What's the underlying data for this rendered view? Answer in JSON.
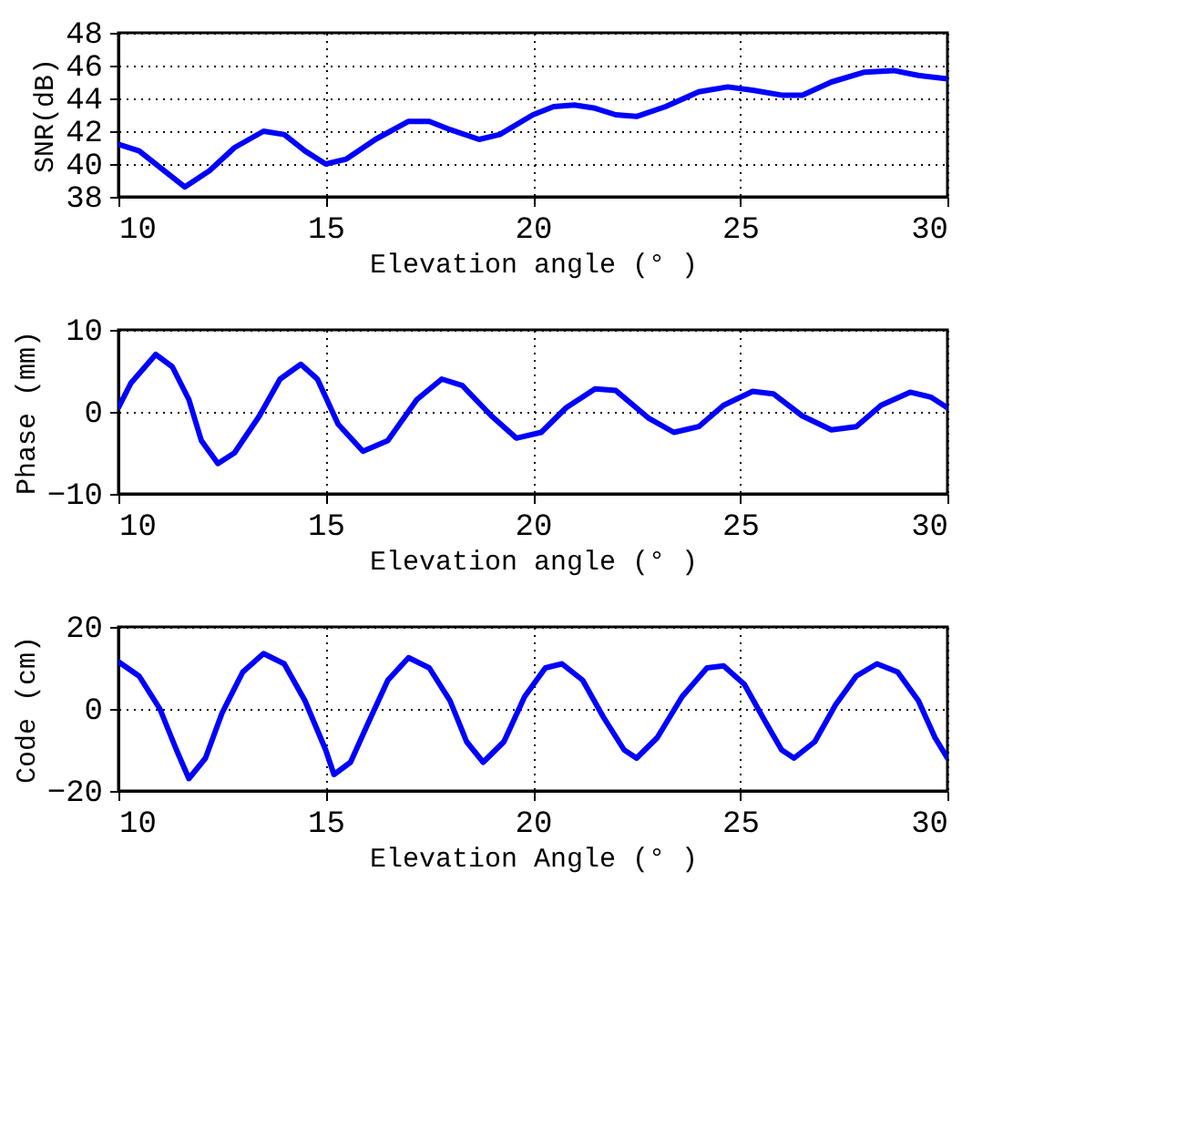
{
  "chart_data": [
    {
      "type": "line",
      "xlabel": "Elevation angle (° )",
      "ylabel": "SNR(dB)",
      "xlim": [
        10,
        30
      ],
      "xticks": [
        10,
        15,
        20,
        25,
        30
      ],
      "ylim": [
        38,
        48
      ],
      "yticks": [
        38,
        40,
        42,
        44,
        46,
        48
      ],
      "grid": true,
      "marker": "none",
      "line_style": "solid",
      "series": [
        {
          "color": "#0000ff",
          "x": [
            10,
            10.5,
            11,
            11.6,
            12.2,
            12.8,
            13.5,
            14,
            14.5,
            15,
            15.5,
            16.2,
            17,
            17.5,
            18,
            18.7,
            19.2,
            20,
            20.5,
            21,
            21.5,
            22,
            22.5,
            23.2,
            24,
            24.7,
            25.3,
            26,
            26.5,
            27.2,
            28,
            28.7,
            29.3,
            30
          ],
          "values": [
            41.2,
            40.8,
            39.8,
            38.6,
            39.6,
            41.0,
            42.0,
            41.8,
            40.8,
            40.0,
            40.3,
            41.5,
            42.6,
            42.6,
            42.1,
            41.5,
            41.8,
            43.0,
            43.5,
            43.6,
            43.4,
            43.0,
            42.9,
            43.5,
            44.4,
            44.7,
            44.5,
            44.2,
            44.2,
            45.0,
            45.6,
            45.7,
            45.4,
            45.2
          ]
        }
      ]
    },
    {
      "type": "line",
      "xlabel": "Elevation angle (° )",
      "ylabel": "Phase (mm)",
      "xlim": [
        10,
        30
      ],
      "xticks": [
        10,
        15,
        20,
        25,
        30
      ],
      "ylim": [
        -10,
        10
      ],
      "yticks": [
        -10,
        0,
        10
      ],
      "grid": true,
      "marker": "none",
      "line_style": "solid",
      "series": [
        {
          "color": "#0000ff",
          "x": [
            10,
            10.3,
            10.9,
            11.3,
            11.7,
            12,
            12.4,
            12.8,
            13.4,
            13.9,
            14.4,
            14.8,
            15.3,
            15.9,
            16.5,
            17.2,
            17.8,
            18.3,
            19,
            19.6,
            20.2,
            20.8,
            21.5,
            22,
            22.8,
            23.4,
            24,
            24.6,
            25.3,
            25.8,
            26.5,
            27.2,
            27.8,
            28.4,
            29.1,
            29.6,
            30
          ],
          "values": [
            0.5,
            3.5,
            7.0,
            5.5,
            1.5,
            -3.5,
            -6.3,
            -5.0,
            -0.5,
            4.0,
            5.8,
            4.0,
            -1.5,
            -4.8,
            -3.5,
            1.5,
            4.0,
            3.2,
            -0.5,
            -3.2,
            -2.5,
            0.5,
            2.8,
            2.6,
            -0.8,
            -2.5,
            -1.8,
            0.8,
            2.5,
            2.2,
            -0.5,
            -2.2,
            -1.8,
            0.8,
            2.4,
            1.8,
            0.5
          ]
        }
      ]
    },
    {
      "type": "line",
      "xlabel": "Elevation Angle (° )",
      "ylabel": "Code (cm)",
      "xlim": [
        10,
        30
      ],
      "xticks": [
        10,
        15,
        20,
        25,
        30
      ],
      "ylim": [
        -20,
        20
      ],
      "yticks": [
        -20,
        0,
        20
      ],
      "grid": true,
      "marker": "none",
      "line_style": "solid",
      "series": [
        {
          "color": "#0000ff",
          "x": [
            10,
            10.5,
            11,
            11.4,
            11.7,
            12.1,
            12.5,
            13,
            13.5,
            14,
            14.5,
            15,
            15.2,
            15.6,
            16,
            16.5,
            17,
            17.5,
            18,
            18.4,
            18.8,
            19.3,
            19.8,
            20.3,
            20.7,
            21.2,
            21.7,
            22.2,
            22.5,
            23,
            23.6,
            24.2,
            24.6,
            25.1,
            25.6,
            26,
            26.3,
            26.8,
            27.3,
            27.8,
            28.3,
            28.8,
            29.3,
            29.7,
            30
          ],
          "values": [
            11.5,
            8,
            0,
            -10,
            -17,
            -12,
            -1,
            9,
            13.5,
            11,
            2,
            -10,
            -16,
            -13,
            -4,
            7,
            12.5,
            10,
            2,
            -8,
            -13,
            -8,
            3,
            10,
            11,
            7,
            -2,
            -10,
            -12,
            -7,
            3,
            10,
            10.5,
            6,
            -3,
            -10,
            -12,
            -8,
            1,
            8,
            11,
            9,
            2,
            -7,
            -12
          ]
        }
      ]
    }
  ]
}
